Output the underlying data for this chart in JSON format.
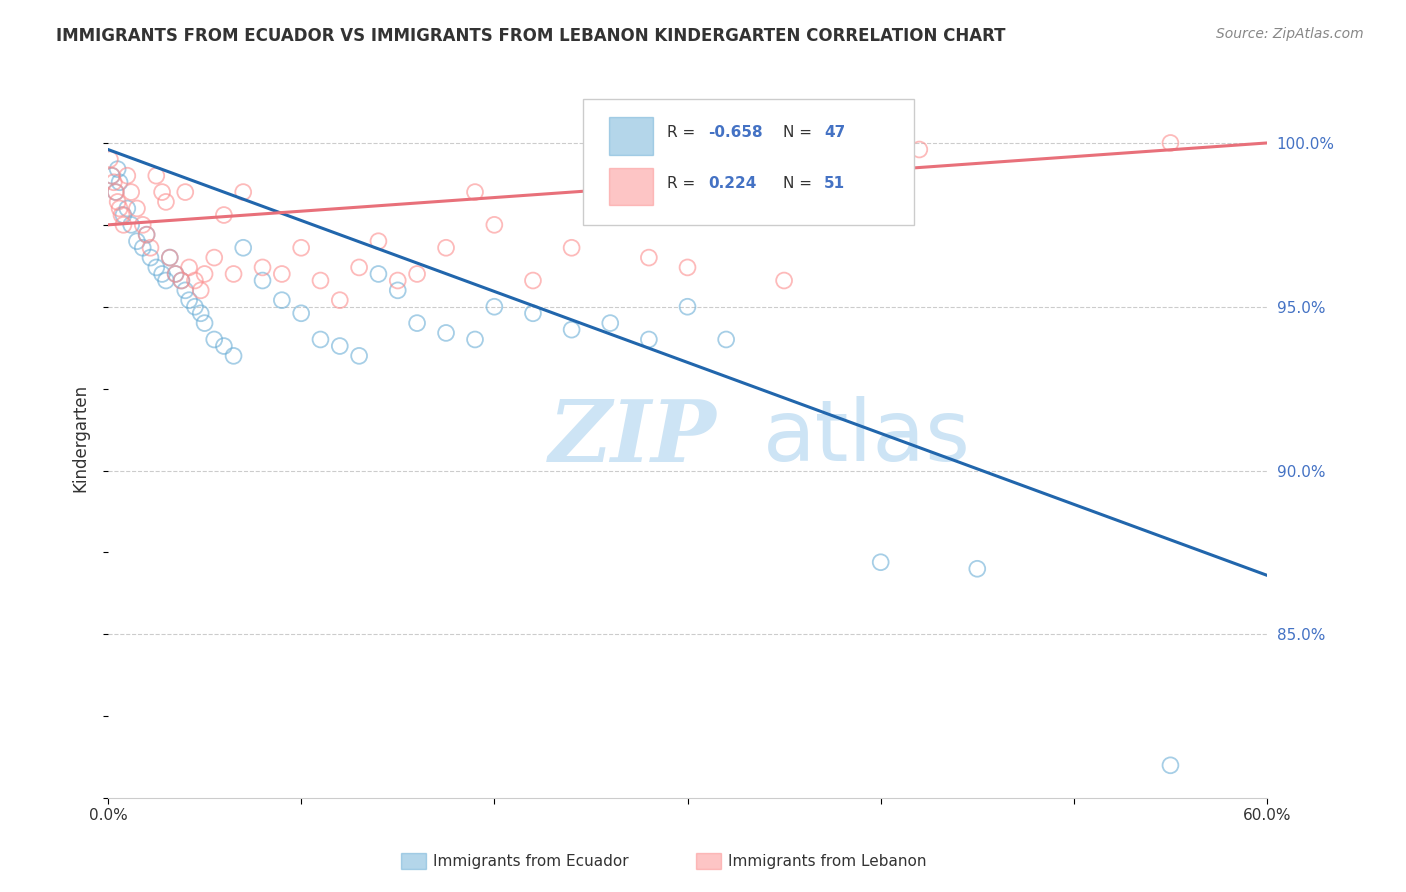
{
  "title": "IMMIGRANTS FROM ECUADOR VS IMMIGRANTS FROM LEBANON KINDERGARTEN CORRELATION CHART",
  "source": "Source: ZipAtlas.com",
  "ylabel": "Kindergarten",
  "ytick_labels": [
    "100.0%",
    "95.0%",
    "90.0%",
    "85.0%"
  ],
  "ytick_values": [
    1.0,
    0.95,
    0.9,
    0.85
  ],
  "xlim": [
    0.0,
    0.6
  ],
  "ylim": [
    0.8,
    1.02
  ],
  "ecuador_color": "#6baed6",
  "lebanon_color": "#fc8d8d",
  "ecuador_R": "-0.658",
  "ecuador_N": "47",
  "lebanon_R": "0.224",
  "lebanon_N": "51",
  "watermark_zip": "ZIP",
  "watermark_atlas": "atlas",
  "legend_label_ecuador": "Immigrants from Ecuador",
  "legend_label_lebanon": "Immigrants from Lebanon",
  "ecuador_scatter_x": [
    0.002,
    0.004,
    0.005,
    0.006,
    0.008,
    0.01,
    0.012,
    0.015,
    0.018,
    0.02,
    0.022,
    0.025,
    0.028,
    0.03,
    0.032,
    0.035,
    0.038,
    0.04,
    0.042,
    0.045,
    0.048,
    0.05,
    0.055,
    0.06,
    0.065,
    0.07,
    0.08,
    0.09,
    0.1,
    0.11,
    0.12,
    0.13,
    0.14,
    0.15,
    0.16,
    0.175,
    0.19,
    0.2,
    0.22,
    0.24,
    0.26,
    0.28,
    0.3,
    0.32,
    0.4,
    0.45,
    0.55
  ],
  "ecuador_scatter_y": [
    0.99,
    0.985,
    0.992,
    0.988,
    0.978,
    0.98,
    0.975,
    0.97,
    0.968,
    0.972,
    0.965,
    0.962,
    0.96,
    0.958,
    0.965,
    0.96,
    0.958,
    0.955,
    0.952,
    0.95,
    0.948,
    0.945,
    0.94,
    0.938,
    0.935,
    0.968,
    0.958,
    0.952,
    0.948,
    0.94,
    0.938,
    0.935,
    0.96,
    0.955,
    0.945,
    0.942,
    0.94,
    0.95,
    0.948,
    0.943,
    0.945,
    0.94,
    0.95,
    0.94,
    0.872,
    0.87,
    0.81
  ],
  "lebanon_scatter_x": [
    0.001,
    0.002,
    0.003,
    0.004,
    0.005,
    0.006,
    0.007,
    0.008,
    0.01,
    0.012,
    0.015,
    0.018,
    0.02,
    0.022,
    0.025,
    0.028,
    0.03,
    0.032,
    0.035,
    0.038,
    0.04,
    0.042,
    0.045,
    0.048,
    0.05,
    0.055,
    0.06,
    0.065,
    0.07,
    0.08,
    0.09,
    0.1,
    0.11,
    0.12,
    0.13,
    0.14,
    0.15,
    0.16,
    0.175,
    0.19,
    0.2,
    0.22,
    0.24,
    0.26,
    0.28,
    0.3,
    0.32,
    0.35,
    0.38,
    0.42,
    0.55
  ],
  "lebanon_scatter_y": [
    0.995,
    0.99,
    0.988,
    0.985,
    0.982,
    0.98,
    0.978,
    0.975,
    0.99,
    0.985,
    0.98,
    0.975,
    0.972,
    0.968,
    0.99,
    0.985,
    0.982,
    0.965,
    0.96,
    0.958,
    0.985,
    0.962,
    0.958,
    0.955,
    0.96,
    0.965,
    0.978,
    0.96,
    0.985,
    0.962,
    0.96,
    0.968,
    0.958,
    0.952,
    0.962,
    0.97,
    0.958,
    0.96,
    0.968,
    0.985,
    0.975,
    0.958,
    0.968,
    0.98,
    0.965,
    0.962,
    0.985,
    0.958,
    0.99,
    0.998,
    1.0
  ],
  "ecuador_trendline_x": [
    0.0,
    0.6
  ],
  "ecuador_trendline_y": [
    0.998,
    0.868
  ],
  "lebanon_trendline_x": [
    0.0,
    0.6
  ],
  "lebanon_trendline_y": [
    0.975,
    1.0
  ],
  "trend_blue": "#2166ac",
  "trend_pink": "#e8707a",
  "grid_color": "#cccccc",
  "tick_label_color": "#4472c4",
  "title_color": "#333333",
  "source_color": "#888888",
  "watermark_color": "#cde4f5"
}
